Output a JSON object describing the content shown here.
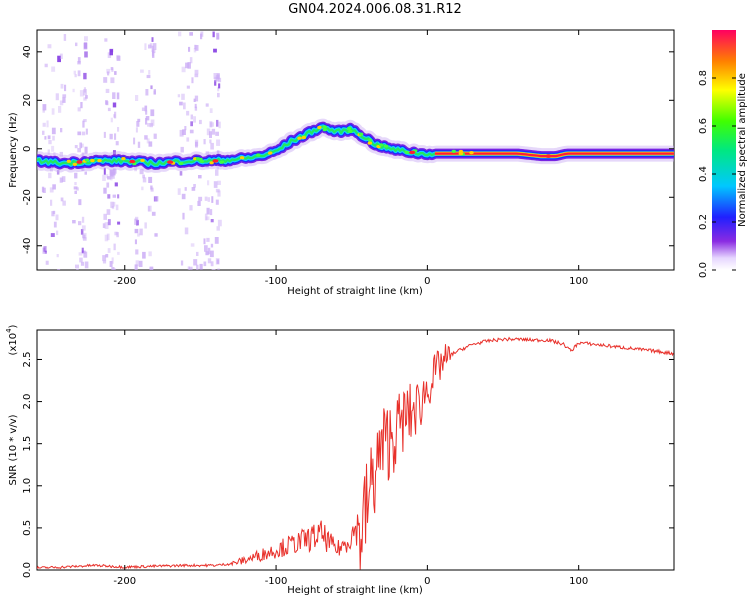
{
  "title": "GN04.2024.006.08.31.R12",
  "chart_data": [
    {
      "type": "heatmap",
      "xlabel": "Height of straight line (km)",
      "ylabel": "Frequency (Hz)",
      "xlim": [
        -258,
        163
      ],
      "ylim": [
        -50,
        49
      ],
      "xticks": [
        -200,
        -100,
        0,
        100
      ],
      "yticks": [
        -40,
        -20,
        0,
        20,
        40
      ],
      "track": [
        [
          -258,
          -5
        ],
        [
          -240,
          -6
        ],
        [
          -220,
          -5
        ],
        [
          -200,
          -5
        ],
        [
          -180,
          -6
        ],
        [
          -160,
          -5
        ],
        [
          -140,
          -5
        ],
        [
          -120,
          -4
        ],
        [
          -110,
          -3
        ],
        [
          -100,
          -1
        ],
        [
          -90,
          3
        ],
        [
          -80,
          6
        ],
        [
          -70,
          9
        ],
        [
          -60,
          7
        ],
        [
          -50,
          8
        ],
        [
          -42,
          5
        ],
        [
          -35,
          2
        ],
        [
          -25,
          0
        ],
        [
          -15,
          -1
        ],
        [
          -5,
          -2
        ],
        [
          0,
          -2
        ],
        [
          20,
          -2
        ],
        [
          60,
          -2
        ],
        [
          75,
          -3
        ],
        [
          85,
          -3
        ],
        [
          92,
          -2
        ],
        [
          100,
          -2
        ],
        [
          163,
          -2
        ]
      ],
      "colorbar": {
        "label": "Normalized spectral amplitude",
        "ticks": [
          "0.0",
          "0.2",
          "0.4",
          "0.6",
          "0.8"
        ],
        "range": [
          0,
          1
        ]
      }
    },
    {
      "type": "line",
      "xlabel": "Height of straight line (km)",
      "ylabel": "SNR (10 * v/v)",
      "yscale_label": "(x10",
      "yscale_exp": "4",
      "xlim": [
        -258,
        163
      ],
      "ylim": [
        0,
        2.85
      ],
      "xticks": [
        -200,
        -100,
        0,
        100
      ],
      "yticks": [
        "0.0",
        "0.5",
        "1.0",
        "1.5",
        "2.0",
        "2.5"
      ],
      "series": [
        {
          "color": "#e8302a",
          "x": [
            -258,
            -240,
            -220,
            -200,
            -180,
            -160,
            -140,
            -130,
            -120,
            -110,
            -100,
            -90,
            -80,
            -70,
            -60,
            -55,
            -50,
            -45,
            -40,
            -35,
            -30,
            -25,
            -20,
            -15,
            -10,
            -5,
            0,
            10,
            20,
            30,
            40,
            50,
            60,
            70,
            80,
            90,
            95,
            100,
            110,
            130,
            150,
            163
          ],
          "y": [
            0.01,
            0.02,
            0.04,
            0.02,
            0.03,
            0.04,
            0.04,
            0.06,
            0.1,
            0.15,
            0.2,
            0.25,
            0.3,
            0.35,
            0.2,
            0.25,
            0.35,
            0.45,
            0.8,
            1.2,
            1.5,
            1.6,
            1.7,
            1.85,
            1.9,
            2.0,
            2.2,
            2.5,
            2.6,
            2.68,
            2.72,
            2.74,
            2.74,
            2.73,
            2.73,
            2.68,
            2.6,
            2.7,
            2.68,
            2.64,
            2.6,
            2.57
          ]
        }
      ]
    }
  ]
}
